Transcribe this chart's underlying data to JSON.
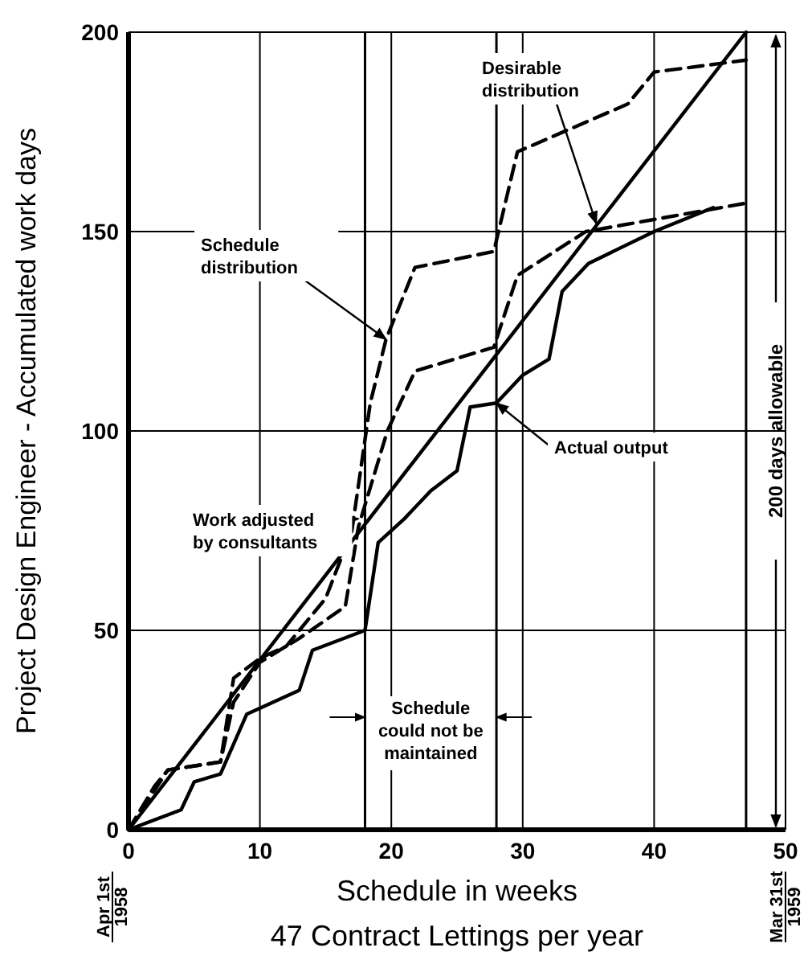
{
  "chart_data": {
    "type": "line",
    "xlabel": "Schedule in weeks",
    "ylabel": "Project Design Engineer - Accumulated work days",
    "xlim": [
      0,
      50
    ],
    "ylim": [
      0,
      200
    ],
    "xticks": [
      0,
      10,
      20,
      30,
      40,
      50
    ],
    "yticks": [
      0,
      50,
      100,
      150,
      200
    ],
    "grid": true,
    "marker": "none",
    "series": [
      {
        "color": "#000000",
        "line_style": "solid",
        "x": [
          0,
          47
        ],
        "values": [
          0,
          200
        ]
      },
      {
        "color": "#000000",
        "line_style": "dashed",
        "x": [
          0,
          2,
          3,
          7,
          8,
          10,
          12,
          15,
          17,
          18.4,
          19.6,
          21.8,
          27.8,
          29.6,
          38,
          40,
          44.7,
          47
        ],
        "values": [
          0,
          11,
          15,
          17,
          38,
          43,
          46,
          58,
          75,
          107,
          123,
          141,
          145,
          170,
          182,
          190,
          192,
          193
        ]
      },
      {
        "color": "#000000",
        "line_style": "dashed",
        "x": [
          0,
          3,
          7,
          8,
          10,
          13,
          16.5,
          17.5,
          19.7,
          21.8,
          27.8,
          29.6,
          34.8,
          46.8
        ],
        "values": [
          0,
          15,
          17,
          32,
          42,
          48,
          56,
          76,
          100,
          115,
          121,
          139,
          150,
          157
        ]
      },
      {
        "color": "#000000",
        "line_style": "solid",
        "x": [
          0,
          4,
          5,
          7,
          9,
          13,
          14,
          18,
          19,
          21,
          23,
          25,
          26,
          28,
          30,
          32,
          33,
          35,
          40,
          44.5
        ],
        "values": [
          0,
          5,
          12,
          14,
          29,
          35,
          45,
          50,
          72,
          78,
          85,
          90,
          106,
          107,
          114,
          118,
          135,
          142,
          150,
          156
        ]
      }
    ],
    "ref_lines": [
      {
        "axis": "x",
        "value": 47,
        "color": "#000000"
      },
      {
        "axis": "x",
        "value": 18,
        "color": "#000000"
      },
      {
        "axis": "x",
        "value": 28,
        "color": "#000000"
      }
    ],
    "annotations": [
      {
        "text": "Desirable distribution",
        "x": 35.6,
        "y": 152
      },
      {
        "text": "Schedule distribution",
        "x": 19.6,
        "y": 123
      },
      {
        "text": "Work adjusted by consultants",
        "x": 17.5,
        "y": 78
      },
      {
        "text": "Actual output",
        "x": 28,
        "y": 107
      },
      "Schedule could not be maintained",
      "Apr 1st 1958",
      "Mar 31st 1959",
      "200 days allowable",
      "47 Contract Lettings per year"
    ]
  }
}
